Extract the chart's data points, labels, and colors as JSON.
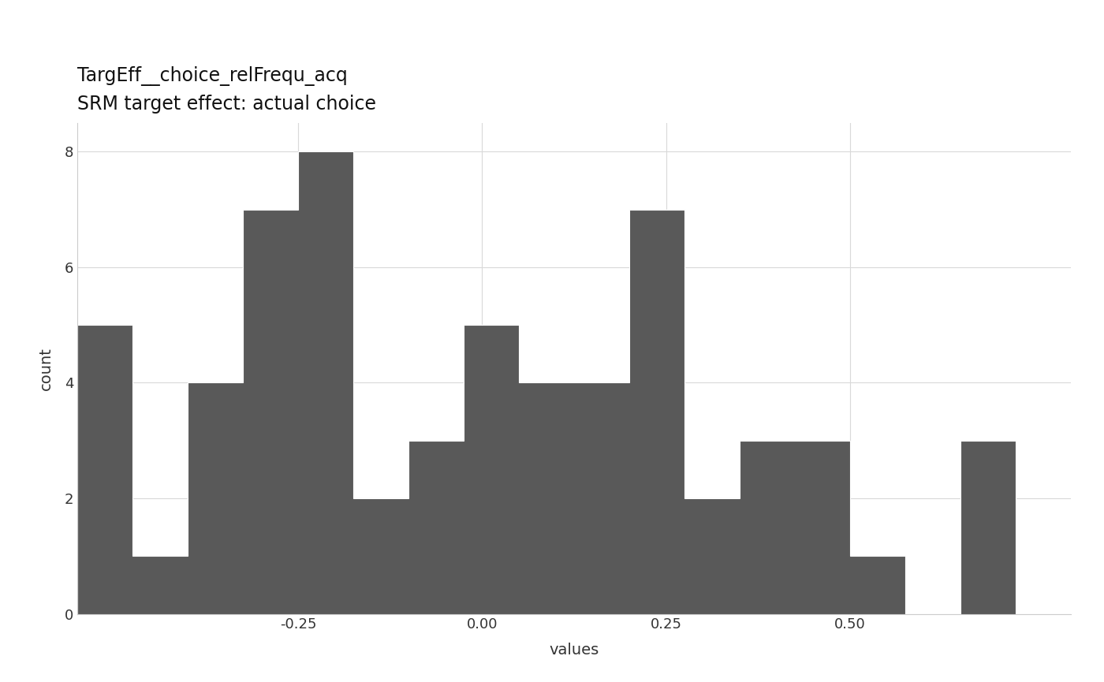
{
  "title": "TargEff__choice_relFrequ_acq",
  "subtitle": "SRM target effect: actual choice",
  "xlabel": "values",
  "ylabel": "count",
  "bar_color": "#595959",
  "edge_color": "white",
  "background_color": "#ffffff",
  "panel_background": "#ffffff",
  "grid_color": "#d9d9d9",
  "ylim": [
    0,
    8.5
  ],
  "yticks": [
    0,
    2,
    4,
    6,
    8
  ],
  "xtick_labels": [
    "-0.25",
    "0.00",
    "0.25",
    "0.50"
  ],
  "xtick_values": [
    -0.25,
    0.0,
    0.25,
    0.5
  ],
  "bin_edges": [
    -0.55,
    -0.475,
    -0.4,
    -0.325,
    -0.25,
    -0.175,
    -0.1,
    -0.025,
    0.05,
    0.125,
    0.2,
    0.275,
    0.35,
    0.425,
    0.5,
    0.575,
    0.65,
    0.725,
    0.8
  ],
  "counts": [
    5,
    1,
    4,
    7,
    8,
    2,
    3,
    5,
    4,
    4,
    7,
    2,
    3,
    3,
    1,
    0,
    3,
    0
  ]
}
